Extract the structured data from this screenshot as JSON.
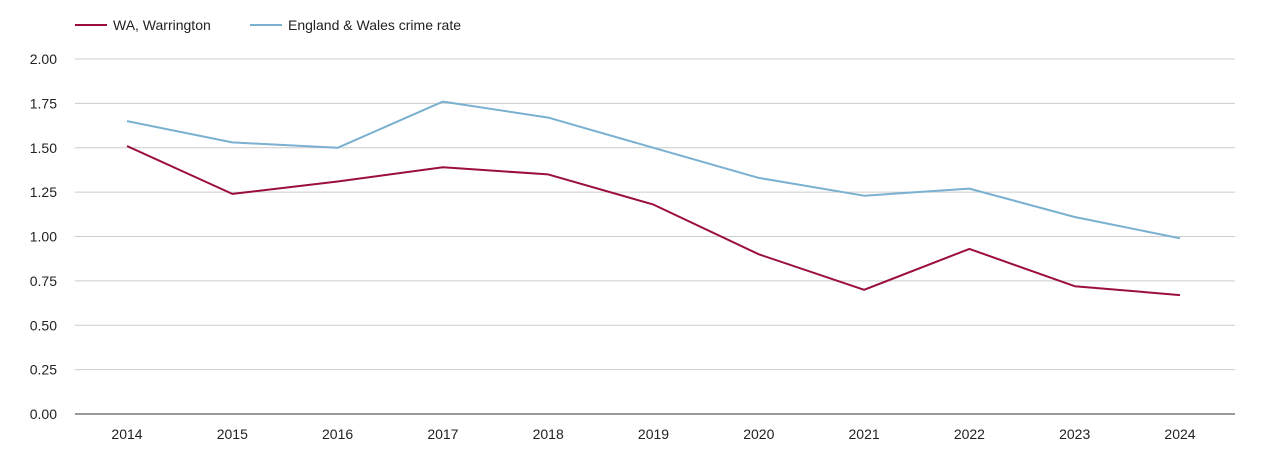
{
  "chart_data": {
    "type": "line",
    "title": "",
    "xlabel": "",
    "ylabel": "",
    "categories": [
      "2014",
      "2015",
      "2016",
      "2017",
      "2018",
      "2019",
      "2020",
      "2021",
      "2022",
      "2023",
      "2024"
    ],
    "y_ticks": [
      "0.00",
      "0.25",
      "0.50",
      "0.75",
      "1.00",
      "1.25",
      "1.50",
      "1.75",
      "2.00"
    ],
    "ylim": [
      0,
      2
    ],
    "grid": true,
    "legend_position": "top-left",
    "series": [
      {
        "name": "WA, Warrington",
        "color": "#9b0f3a",
        "values": [
          1.51,
          1.24,
          1.31,
          1.39,
          1.35,
          1.18,
          0.9,
          0.7,
          0.93,
          0.72,
          0.67
        ]
      },
      {
        "name": "England & Wales crime rate",
        "color": "#7ab0d0",
        "values": [
          1.65,
          1.53,
          1.5,
          1.76,
          1.67,
          1.5,
          1.33,
          1.23,
          1.27,
          1.11,
          0.99
        ]
      }
    ]
  }
}
